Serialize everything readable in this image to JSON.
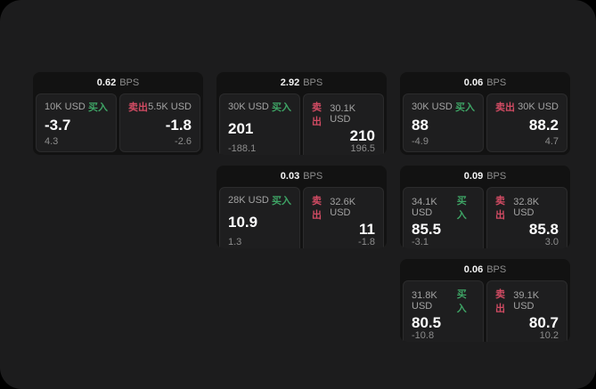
{
  "page": {
    "bps_suffix": "BPS",
    "buy_label": "买入",
    "sell_label": "卖出",
    "colors": {
      "outside_background": "#000000",
      "screen_background": "#1c1c1d",
      "card_background": "#121212",
      "panel_background": "#1e1e1f",
      "buy_green": "#3ea465",
      "sell_red": "#d14b63"
    }
  },
  "cards": [
    {
      "bps": "0.62",
      "buy": {
        "amount": "10K USD",
        "value": "-3.7",
        "change": "4.3"
      },
      "sell": {
        "amount": "5.5K USD",
        "value": "-1.8",
        "change": "-2.6"
      }
    },
    {
      "bps": "2.92",
      "buy": {
        "amount": "30K USD",
        "value": "201",
        "change": "-188.1"
      },
      "sell": {
        "amount": "30.1K USD",
        "value": "210",
        "change": "196.5"
      }
    },
    {
      "bps": "0.06",
      "buy": {
        "amount": "30K USD",
        "value": "88",
        "change": "-4.9"
      },
      "sell": {
        "amount": "30K USD",
        "value": "88.2",
        "change": "4.7"
      }
    },
    {
      "bps": "0.03",
      "buy": {
        "amount": "28K USD",
        "value": "10.9",
        "change": "1.3"
      },
      "sell": {
        "amount": "32.6K USD",
        "value": "11",
        "change": "-1.8"
      }
    },
    {
      "bps": "0.09",
      "buy": {
        "amount": "34.1K USD",
        "value": "85.5",
        "change": "-3.1"
      },
      "sell": {
        "amount": "32.8K USD",
        "value": "85.8",
        "change": "3.0"
      }
    },
    {
      "bps": "0.06",
      "buy": {
        "amount": "31.8K USD",
        "value": "80.5",
        "change": "-10.8"
      },
      "sell": {
        "amount": "39.1K USD",
        "value": "80.7",
        "change": "10.2"
      }
    }
  ]
}
